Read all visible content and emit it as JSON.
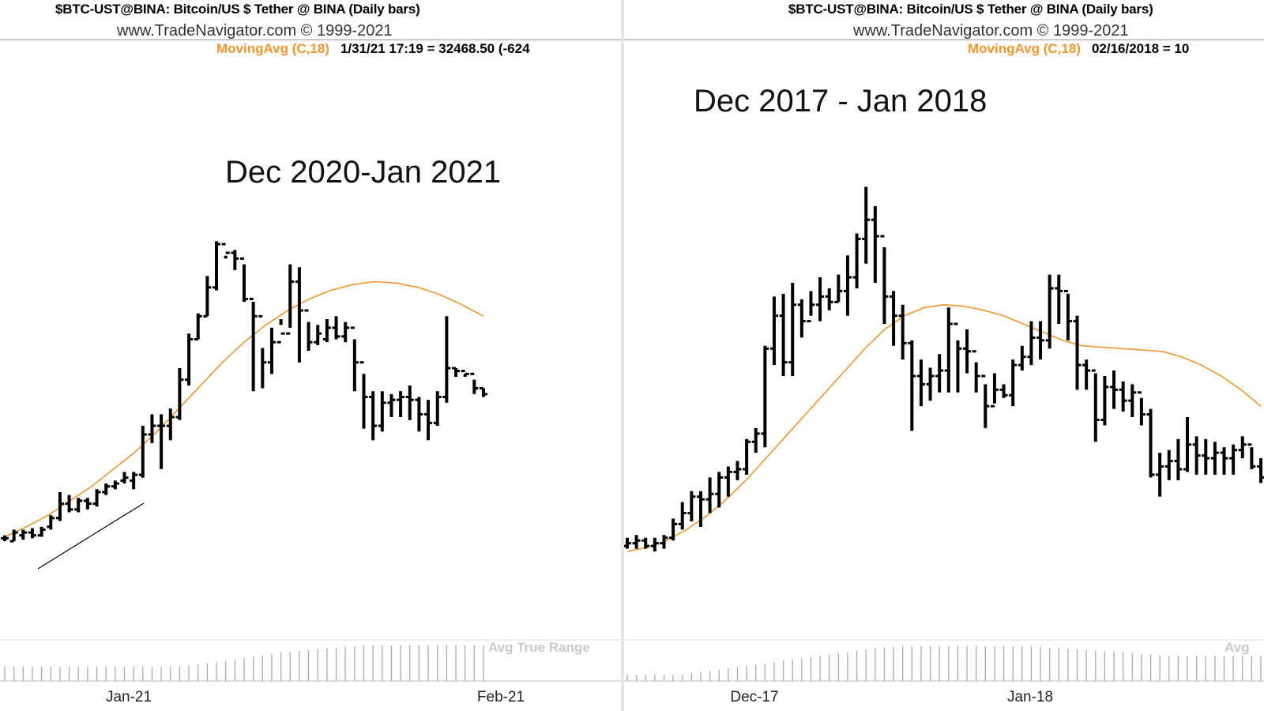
{
  "colors": {
    "bars": "#000000",
    "moving_avg": "#f0962d",
    "indicator": "#aaaaaa",
    "indicator_label": "#c8c8c8",
    "background": "#ffffff"
  },
  "panels": [
    {
      "header_line1": "$BTC-UST@BINA:  Bitcoin/US $ Tether @ BINA  (Daily bars)",
      "header_line2": "www.TradeNavigator.com © 1999-2021",
      "ma_label": "MovingAvg (C,18)",
      "ma_value": "1/31/21 17:19 = 32468.50 (-624",
      "annotation_title": "Dec 2020-Jan 2021",
      "indicator_label": "Avg True Range",
      "x_ticks": [
        "Jan-21",
        "Feb-21"
      ]
    },
    {
      "header_line1": "$BTC-UST@BINA:  Bitcoin/US $ Tether @ BINA  (Daily bars)",
      "header_line2": "www.TradeNavigator.com © 1999-2021",
      "ma_label": "MovingAvg (C,18)",
      "ma_value": "02/16/2018 = 10",
      "annotation_title": "Dec 2017 - Jan 2018",
      "indicator_label": "Avg",
      "x_ticks": [
        "Dec-17",
        "Jan-18"
      ]
    }
  ],
  "chart_data": [
    {
      "type": "line",
      "title": "Dec 2020-Jan 2021",
      "subtitle": "$BTC-UST@BINA:  Bitcoin/US $ Tether @ BINA  (Daily bars)",
      "x_tick_labels": [
        "Jan-21",
        "Feb-21"
      ],
      "series": [
        {
          "name": "MovingAvg (C,18)",
          "values": [
            1.5,
            5,
            9,
            14,
            19,
            25,
            31,
            38,
            46,
            54,
            62,
            69,
            75,
            80,
            84,
            87,
            89,
            90,
            89.5,
            88,
            85.5,
            82,
            78
          ]
        }
      ],
      "price_bars": [
        [
          1,
          2,
          0,
          1
        ],
        [
          0,
          4,
          0,
          3
        ],
        [
          2,
          4,
          0.5,
          3
        ],
        [
          3,
          4.5,
          1,
          2
        ],
        [
          2,
          5,
          1.5,
          4
        ],
        [
          5,
          9,
          4,
          8
        ],
        [
          8,
          17,
          7,
          13
        ],
        [
          13,
          16,
          10,
          11
        ],
        [
          11,
          15,
          10,
          14
        ],
        [
          14,
          15,
          11,
          13
        ],
        [
          13,
          18,
          12,
          17
        ],
        [
          17,
          20,
          16,
          19
        ],
        [
          19,
          21,
          18,
          20
        ],
        [
          21,
          24,
          20,
          22
        ],
        [
          21,
          24,
          18,
          23
        ],
        [
          23,
          40,
          22,
          37
        ],
        [
          37,
          44,
          34,
          40
        ],
        [
          40,
          44,
          25,
          40
        ],
        [
          40,
          46,
          35,
          43
        ],
        [
          43,
          60,
          42,
          56
        ],
        [
          56,
          72,
          54,
          70
        ],
        [
          70,
          79,
          70,
          78
        ],
        [
          78,
          92,
          78,
          88
        ],
        [
          88,
          104,
          87,
          103
        ],
        [
          103,
          99,
          98,
          100
        ],
        [
          100,
          101,
          94,
          98
        ],
        [
          98,
          96,
          83,
          84
        ],
        [
          84,
          83,
          52,
          78
        ],
        [
          78,
          67,
          53,
          62
        ],
        [
          62,
          74,
          58,
          69
        ],
        [
          69,
          77,
          75,
          72
        ],
        [
          72,
          96,
          74,
          90
        ],
        [
          90,
          95,
          62,
          80
        ],
        [
          80,
          76,
          66,
          69
        ],
        [
          69,
          75,
          68,
          72
        ],
        [
          70,
          77,
          69,
          74
        ],
        [
          74,
          78,
          70,
          71
        ],
        [
          71,
          76,
          69,
          74
        ],
        [
          74,
          70,
          52,
          62
        ],
        [
          62,
          58,
          39,
          50
        ],
        [
          50,
          52,
          35,
          40
        ],
        [
          40,
          52,
          38,
          48
        ],
        [
          48,
          51,
          43,
          49
        ],
        [
          49,
          52,
          43,
          50
        ],
        [
          50,
          54,
          42,
          49
        ],
        [
          49,
          50,
          38,
          44
        ],
        [
          44,
          49,
          35,
          41
        ],
        [
          41,
          52,
          40,
          50
        ],
        [
          50,
          78,
          48,
          60
        ],
        [
          60,
          60,
          57,
          59
        ],
        [
          59,
          58,
          57,
          58
        ],
        [
          58,
          56,
          51,
          53
        ],
        [
          53,
          53,
          50,
          51
        ]
      ],
      "indicator": {
        "name": "Avg True Range",
        "values": [
          2,
          2,
          2,
          2,
          2,
          2,
          2,
          2,
          2,
          2,
          2,
          2,
          2,
          2,
          2,
          2,
          2,
          2,
          2,
          2,
          2.2,
          2.4,
          2.5,
          2.6,
          2.8,
          3,
          3.2,
          3.4,
          3.6,
          3.8,
          4,
          4.1,
          4.2,
          4.4,
          4.5,
          4.6,
          4.7,
          4.8,
          4.9,
          5,
          5,
          5,
          5,
          5,
          5,
          5,
          5,
          5,
          5,
          5,
          5,
          5,
          5
        ]
      }
    },
    {
      "type": "line",
      "title": "Dec 2017 - Jan 2018",
      "subtitle": "$BTC-UST@BINA:  Bitcoin/US $ Tether @ BINA  (Daily bars)",
      "x_tick_labels": [
        "Dec-17",
        "Jan-18"
      ],
      "series": [
        {
          "name": "MovingAvg (C,18)",
          "values": [
            2,
            3.5,
            6,
            10,
            15,
            21,
            28,
            36,
            44,
            52,
            60,
            68,
            76,
            83,
            88,
            91,
            92,
            91.5,
            90,
            88,
            85,
            82,
            79,
            77,
            76.5,
            76,
            75.5,
            75,
            73,
            70,
            66,
            61,
            55
          ]
        }
      ],
      "price_bars": [
        [
          4,
          7,
          3,
          5
        ],
        [
          5,
          8,
          3,
          6
        ],
        [
          6,
          7,
          3,
          4
        ],
        [
          4,
          7,
          2,
          5
        ],
        [
          5,
          8,
          3,
          7
        ],
        [
          7,
          14,
          6,
          12
        ],
        [
          12,
          20,
          10,
          16
        ],
        [
          16,
          24,
          13,
          22
        ],
        [
          22,
          24,
          11,
          21
        ],
        [
          21,
          29,
          16,
          23
        ],
        [
          23,
          31,
          18,
          29
        ],
        [
          29,
          33,
          22,
          31
        ],
        [
          31,
          35,
          28,
          32
        ],
        [
          32,
          43,
          30,
          42
        ],
        [
          42,
          47,
          38,
          45
        ],
        [
          45,
          77,
          40,
          76
        ],
        [
          76,
          95,
          70,
          88
        ],
        [
          88,
          96,
          66,
          71
        ],
        [
          71,
          100,
          66,
          92
        ],
        [
          92,
          94,
          80,
          86
        ],
        [
          86,
          97,
          88,
          92
        ],
        [
          92,
          102,
          86,
          95
        ],
        [
          95,
          98,
          90,
          93
        ],
        [
          93,
          103,
          93,
          97
        ],
        [
          97,
          110,
          88,
          102
        ],
        [
          102,
          118,
          98,
          116
        ],
        [
          116,
          135,
          107,
          123
        ],
        [
          123,
          128,
          100,
          117
        ],
        [
          117,
          113,
          85,
          95
        ],
        [
          95,
          97,
          77,
          88
        ],
        [
          88,
          92,
          72,
          78
        ],
        [
          78,
          79,
          46,
          66
        ],
        [
          66,
          72,
          55,
          63
        ],
        [
          63,
          69,
          57,
          66
        ],
        [
          66,
          74,
          60,
          68
        ],
        [
          68,
          91,
          60,
          85
        ],
        [
          85,
          79,
          60,
          76
        ],
        [
          76,
          83,
          67,
          75
        ],
        [
          75,
          71,
          60,
          66
        ],
        [
          66,
          63,
          47,
          55
        ],
        [
          55,
          67,
          56,
          61
        ],
        [
          61,
          63,
          58,
          59
        ],
        [
          59,
          72,
          55,
          70
        ],
        [
          70,
          77,
          68,
          73
        ],
        [
          73,
          86,
          70,
          80
        ],
        [
          80,
          86,
          72,
          79
        ],
        [
          79,
          103,
          76,
          98
        ],
        [
          98,
          103,
          85,
          97
        ],
        [
          97,
          96,
          79,
          86
        ],
        [
          86,
          88,
          61,
          70
        ],
        [
          70,
          72,
          61,
          68
        ],
        [
          68,
          67,
          42,
          50
        ],
        [
          50,
          66,
          48,
          62
        ],
        [
          62,
          68,
          54,
          61
        ],
        [
          61,
          64,
          53,
          57
        ],
        [
          57,
          63,
          51,
          60
        ],
        [
          60,
          58,
          48,
          52
        ],
        [
          52,
          54,
          29,
          30
        ],
        [
          30,
          38,
          22,
          33
        ],
        [
          33,
          39,
          28,
          35
        ],
        [
          35,
          43,
          28,
          32
        ],
        [
          32,
          51,
          31,
          41
        ],
        [
          41,
          44,
          30,
          37
        ],
        [
          37,
          43,
          30,
          36
        ],
        [
          36,
          42,
          30,
          38
        ],
        [
          38,
          40,
          30,
          36
        ],
        [
          36,
          41,
          30,
          39
        ],
        [
          39,
          44,
          36,
          41
        ],
        [
          41,
          40,
          32,
          33
        ],
        [
          33,
          36,
          27,
          29
        ]
      ],
      "indicator": {
        "name": "Avg",
        "values": [
          1,
          1,
          1,
          1,
          1,
          1,
          1,
          1.2,
          1.4,
          1.6,
          1.8,
          2,
          2.2,
          2.4,
          2.6,
          2.8,
          3,
          3.2,
          3.4,
          3.6,
          3.8,
          4,
          4.2,
          4.4,
          4.6,
          4.8,
          5,
          5.2,
          5.3,
          5.4,
          5.5,
          5.5,
          5.5,
          5.5,
          5.5,
          5.5,
          5.5,
          5.5,
          5.5,
          5.5,
          5.5,
          5.5,
          5.5,
          5.5,
          5.5,
          5.4,
          5.3,
          5.2,
          5.1,
          5,
          4.9,
          4.8,
          4.7,
          4.6,
          4.5,
          4.4,
          4.3,
          4.2,
          4.1,
          4,
          4,
          4,
          4,
          4,
          4,
          4,
          4,
          4,
          4,
          4
        ]
      }
    }
  ]
}
